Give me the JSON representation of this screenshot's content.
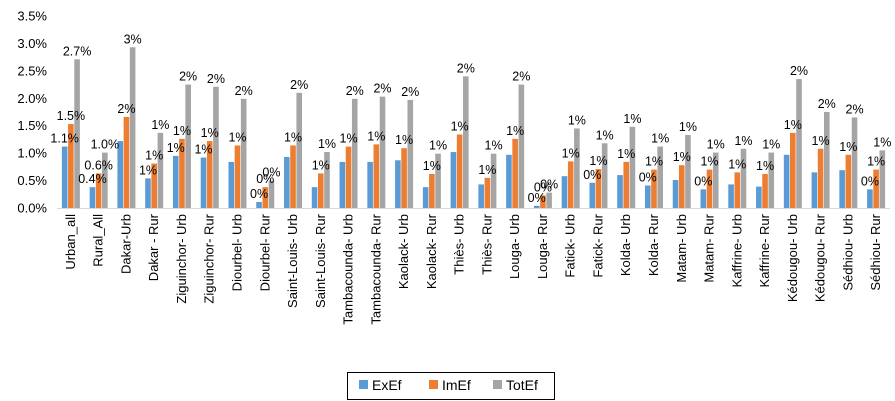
{
  "chart_data": {
    "type": "bar",
    "ylim": [
      0,
      3.5
    ],
    "yticks": [
      "0.0%",
      "0.5%",
      "1.0%",
      "1.5%",
      "2.0%",
      "2.5%",
      "3.0%",
      "3.5%"
    ],
    "grid": false,
    "legend_position": "bottom",
    "categories": [
      "Urban_all",
      "Rural_All",
      "Dakar-Urb",
      "Dakar - Rur",
      "Ziguinchor- Urb",
      "Ziguinchor- Rur",
      "Diourbel- Urb",
      "Diourbel- Rur",
      "Saint-Louis- Urb",
      "Saint-Louis- Rur",
      "Tambacounda- Urb",
      "Tambacounda- Rur",
      "Kaolack- Urb",
      "Kaolack- Rur",
      "Thiès- Urb",
      "Thiès- Rur",
      "Louga- Urb",
      "Louga- Rur",
      "Fatick- Urb",
      "Fatick- Rur",
      "Kolda- Urb",
      "Kolda- Rur",
      "Matam- Urb",
      "Matam- Rur",
      "Kaffrine- Urb",
      "Kaffrine- Rur",
      "Kédougou- Urb",
      "Kédougou- Rur",
      "Sédhiou- Urb",
      "Sédhiou- Rur"
    ],
    "series": [
      {
        "name": "ExEf",
        "color": "#5B9BD5",
        "values": [
          1.12,
          0.38,
          1.22,
          0.54,
          0.95,
          0.92,
          0.84,
          0.11,
          0.93,
          0.38,
          0.84,
          0.84,
          0.87,
          0.38,
          1.02,
          0.43,
          0.97,
          0.04,
          0.58,
          0.46,
          0.6,
          0.41,
          0.51,
          0.34,
          0.43,
          0.39,
          0.97,
          0.65,
          0.69,
          0.34
        ],
        "labels": [
          "1.1%",
          "0.4%",
          "",
          "1%",
          "1%",
          "1%",
          "",
          "0%",
          "",
          "",
          "",
          "",
          "",
          "",
          "",
          "",
          "",
          "0%",
          "",
          "0%",
          "",
          "0%",
          "",
          "0%",
          "",
          "",
          "",
          "",
          "",
          "0%"
        ]
      },
      {
        "name": "ImEf",
        "color": "#ED7D31",
        "values": [
          1.53,
          0.63,
          1.66,
          0.81,
          1.26,
          1.22,
          1.14,
          0.38,
          1.14,
          0.63,
          1.12,
          1.16,
          1.09,
          0.62,
          1.34,
          0.55,
          1.26,
          0.23,
          0.85,
          0.71,
          0.84,
          0.7,
          0.78,
          0.7,
          0.65,
          0.62,
          1.37,
          1.08,
          0.97,
          0.7
        ],
        "labels": [
          "1.5%",
          "0.6%",
          "2%",
          "1%",
          "1%",
          "1%",
          "1%",
          "0%",
          "1%",
          "1%",
          "1%",
          "1%",
          "1%",
          "1%",
          "1%",
          "1%",
          "1%",
          "0%",
          "1%",
          "1%",
          "1%",
          "1%",
          "1%",
          "1%",
          "1%",
          "1%",
          "1%",
          "1%",
          "1%",
          "1%"
        ]
      },
      {
        "name": "TotEf",
        "color": "#A5A5A5",
        "values": [
          2.71,
          1.01,
          2.93,
          1.37,
          2.25,
          2.21,
          1.99,
          0.5,
          2.1,
          1.02,
          1.99,
          2.03,
          1.97,
          0.99,
          2.4,
          0.99,
          2.25,
          0.28,
          1.45,
          1.18,
          1.48,
          1.12,
          1.33,
          1.01,
          1.08,
          1.01,
          2.35,
          1.75,
          1.65,
          1.05
        ],
        "labels": [
          "2.7%",
          "1.0%",
          "3%",
          "1%",
          "2%",
          "2%",
          "2%",
          "0%",
          "2%",
          "1%",
          "2%",
          "2%",
          "2%",
          "1%",
          "2%",
          "1%",
          "2%",
          "0%",
          "1%",
          "1%",
          "1%",
          "1%",
          "1%",
          "1%",
          "1%",
          "1%",
          "2%",
          "2%",
          "2%",
          "1%"
        ]
      }
    ]
  }
}
